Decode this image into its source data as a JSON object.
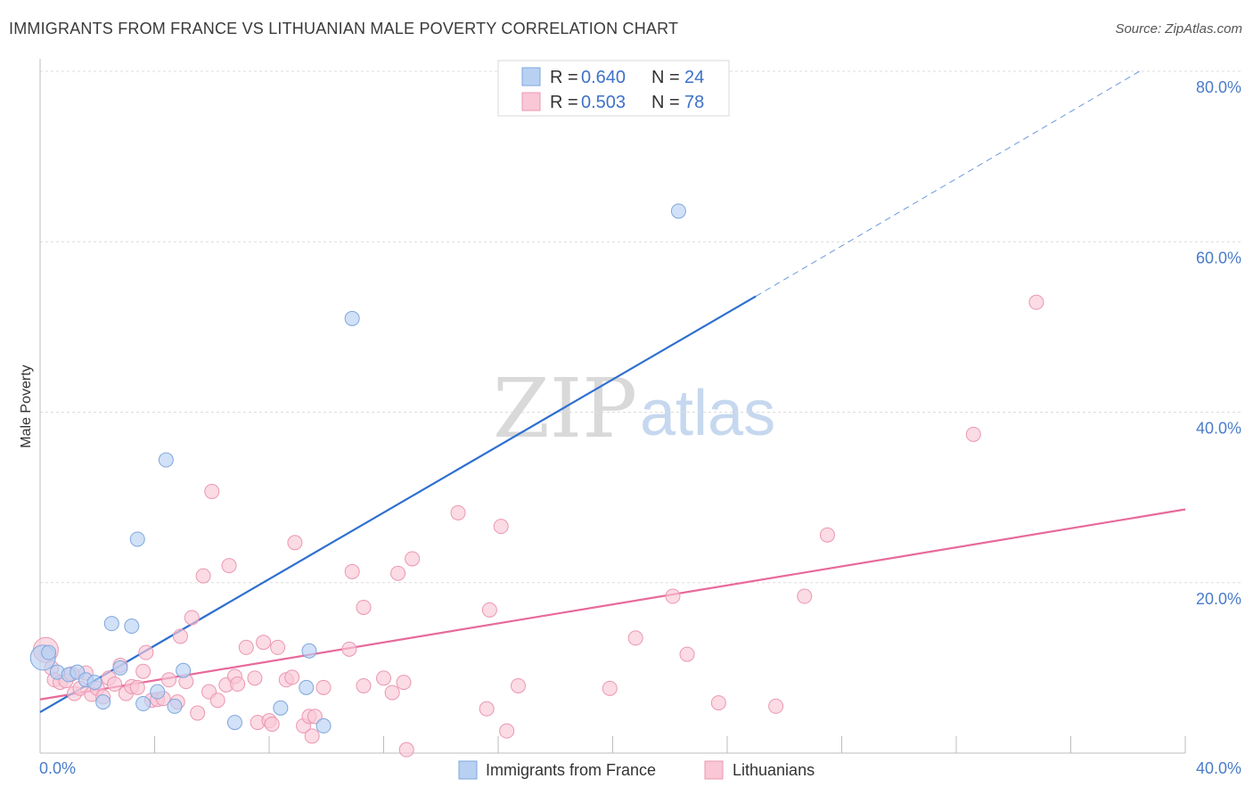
{
  "header": {
    "title": "IMMIGRANTS FROM FRANCE VS LITHUANIAN MALE POVERTY CORRELATION CHART",
    "source": "Source: ZipAtlas.com"
  },
  "watermark": {
    "zip": "ZIP",
    "atlas": "atlas"
  },
  "colors": {
    "blue_fill": "#b8d1f3",
    "blue_stroke": "#7ea6dd",
    "blue_line": "#2e6fd0",
    "pink_fill": "#f9c7d6",
    "pink_stroke": "#eb97b2",
    "pink_line": "#e8699a",
    "grid": "#dcdcdc",
    "tick_text": "#4a7cc9"
  },
  "legend": {
    "r_label": "R =",
    "n_label": "N =",
    "series": [
      {
        "name": "Immigrants from France",
        "r": "0.640",
        "n": "24"
      },
      {
        "name": "Lithuanians",
        "r": "0.503",
        "n": "78"
      }
    ]
  },
  "chart_data": {
    "type": "scatter",
    "title": "IMMIGRANTS FROM FRANCE VS LITHUANIAN MALE POVERTY CORRELATION CHART",
    "xlabel": "",
    "ylabel": "Male Poverty",
    "xlim": [
      0,
      40
    ],
    "ylim": [
      0,
      80
    ],
    "x_tick_labels": [
      "0.0%",
      "40.0%"
    ],
    "y_ticks": [
      20,
      40,
      60,
      80
    ],
    "y_tick_labels": [
      "20.0%",
      "40.0%",
      "60.0%",
      "80.0%"
    ],
    "grid": true,
    "series": [
      {
        "name": "Immigrants from France",
        "color": "blue",
        "r": 0.64,
        "n": 24,
        "trend": {
          "x0": 0,
          "y0": 4.8,
          "x1": 25,
          "y1": 53.6,
          "dashed_to_x": 38.4,
          "dashed_to_y": 80
        },
        "points": [
          [
            0.1,
            11.2,
            14
          ],
          [
            0.6,
            9.5,
            8
          ],
          [
            1.0,
            9.2,
            8
          ],
          [
            1.3,
            9.5,
            8
          ],
          [
            1.6,
            8.6,
            8
          ],
          [
            2.2,
            6.0,
            8
          ],
          [
            2.5,
            15.2,
            8
          ],
          [
            2.8,
            10.0,
            8
          ],
          [
            3.2,
            14.9,
            8
          ],
          [
            3.4,
            25.1,
            8
          ],
          [
            3.6,
            5.8,
            8
          ],
          [
            4.1,
            7.2,
            8
          ],
          [
            4.4,
            34.4,
            8
          ],
          [
            4.7,
            5.5,
            8
          ],
          [
            5.0,
            9.7,
            8
          ],
          [
            6.8,
            3.6,
            8
          ],
          [
            8.4,
            5.3,
            8
          ],
          [
            9.3,
            7.7,
            8
          ],
          [
            9.4,
            12.0,
            8
          ],
          [
            9.9,
            3.2,
            8
          ],
          [
            10.9,
            51.0,
            8
          ],
          [
            22.3,
            63.6,
            8
          ],
          [
            0.3,
            11.8,
            8
          ],
          [
            1.9,
            8.3,
            8
          ]
        ]
      },
      {
        "name": "Lithuanians",
        "color": "pink",
        "r": 0.503,
        "n": 78,
        "trend": {
          "x0": 0,
          "y0": 6.3,
          "x1": 40,
          "y1": 28.6
        },
        "points": [
          [
            0.2,
            12.1,
            14
          ],
          [
            0.4,
            10.0,
            8
          ],
          [
            0.5,
            8.6,
            8
          ],
          [
            0.7,
            8.3,
            8
          ],
          [
            0.9,
            8.5,
            8
          ],
          [
            1.2,
            7.0,
            8
          ],
          [
            1.4,
            7.6,
            8
          ],
          [
            1.6,
            9.4,
            8
          ],
          [
            1.8,
            6.9,
            8
          ],
          [
            2.0,
            7.6,
            8
          ],
          [
            2.2,
            6.6,
            8
          ],
          [
            2.4,
            8.8,
            8
          ],
          [
            2.6,
            8.1,
            8
          ],
          [
            2.8,
            10.3,
            8
          ],
          [
            3.0,
            7.0,
            8
          ],
          [
            3.2,
            7.8,
            8
          ],
          [
            3.4,
            7.7,
            8
          ],
          [
            3.6,
            9.6,
            8
          ],
          [
            3.7,
            11.8,
            8
          ],
          [
            3.9,
            6.2,
            8
          ],
          [
            4.1,
            6.3,
            8
          ],
          [
            4.3,
            6.4,
            8
          ],
          [
            4.5,
            8.6,
            8
          ],
          [
            4.8,
            6.0,
            8
          ],
          [
            4.9,
            13.7,
            8
          ],
          [
            5.1,
            8.4,
            8
          ],
          [
            5.3,
            15.9,
            8
          ],
          [
            5.5,
            4.7,
            8
          ],
          [
            5.7,
            20.8,
            8
          ],
          [
            5.9,
            7.2,
            8
          ],
          [
            6.0,
            30.7,
            8
          ],
          [
            6.2,
            6.2,
            8
          ],
          [
            6.5,
            8.0,
            8
          ],
          [
            6.6,
            22.0,
            8
          ],
          [
            6.8,
            9.0,
            8
          ],
          [
            6.9,
            8.1,
            8
          ],
          [
            7.2,
            12.4,
            8
          ],
          [
            7.5,
            8.8,
            8
          ],
          [
            7.6,
            3.6,
            8
          ],
          [
            7.8,
            13.0,
            8
          ],
          [
            8.0,
            3.8,
            8
          ],
          [
            8.1,
            3.4,
            8
          ],
          [
            8.3,
            12.4,
            8
          ],
          [
            8.6,
            8.6,
            8
          ],
          [
            8.8,
            8.9,
            8
          ],
          [
            8.9,
            24.7,
            8
          ],
          [
            9.2,
            3.2,
            8
          ],
          [
            9.4,
            4.3,
            8
          ],
          [
            9.5,
            2.0,
            8
          ],
          [
            9.6,
            4.3,
            8
          ],
          [
            9.9,
            7.7,
            8
          ],
          [
            10.8,
            12.2,
            8
          ],
          [
            10.9,
            21.3,
            8
          ],
          [
            11.3,
            7.9,
            8
          ],
          [
            11.3,
            17.1,
            8
          ],
          [
            12.0,
            8.8,
            8
          ],
          [
            12.3,
            7.1,
            8
          ],
          [
            12.5,
            21.1,
            8
          ],
          [
            12.7,
            8.3,
            8
          ],
          [
            12.8,
            0.4,
            8
          ],
          [
            13.0,
            22.8,
            8
          ],
          [
            14.6,
            28.2,
            8
          ],
          [
            15.6,
            5.2,
            8
          ],
          [
            15.7,
            16.8,
            8
          ],
          [
            16.1,
            26.6,
            8
          ],
          [
            16.3,
            2.6,
            8
          ],
          [
            16.7,
            7.9,
            8
          ],
          [
            19.9,
            7.6,
            8
          ],
          [
            20.8,
            13.5,
            8
          ],
          [
            22.1,
            18.4,
            8
          ],
          [
            22.6,
            11.6,
            8
          ],
          [
            23.7,
            5.9,
            8
          ],
          [
            25.7,
            5.5,
            8
          ],
          [
            26.7,
            18.4,
            8
          ],
          [
            27.5,
            25.6,
            8
          ],
          [
            32.6,
            37.4,
            8
          ],
          [
            34.8,
            52.9,
            8
          ],
          [
            1.1,
            9.3,
            8
          ]
        ]
      }
    ]
  }
}
